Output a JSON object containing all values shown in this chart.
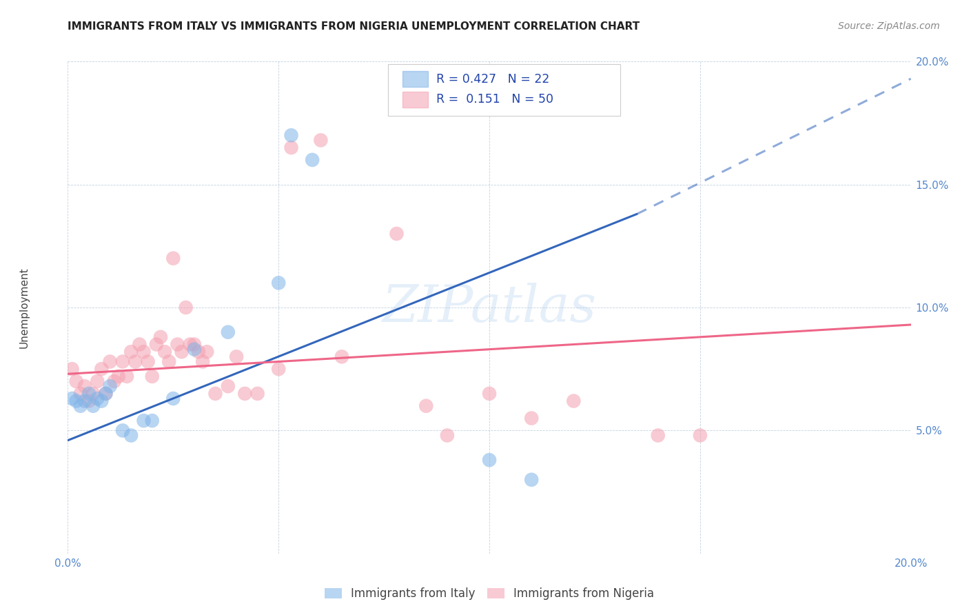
{
  "title": "IMMIGRANTS FROM ITALY VS IMMIGRANTS FROM NIGERIA UNEMPLOYMENT CORRELATION CHART",
  "source": "Source: ZipAtlas.com",
  "ylabel": "Unemployment",
  "xlim": [
    0.0,
    0.2
  ],
  "ylim": [
    0.0,
    0.2
  ],
  "x_ticks": [
    0.0,
    0.05,
    0.1,
    0.15,
    0.2
  ],
  "y_ticks": [
    0.05,
    0.1,
    0.15,
    0.2
  ],
  "watermark": "ZIPatlas",
  "legend_italy_R": "0.427",
  "legend_italy_N": "22",
  "legend_nigeria_R": "0.151",
  "legend_nigeria_N": "50",
  "italy_color": "#7FB3E8",
  "nigeria_color": "#F4A0B0",
  "italy_line_color": "#3366BB",
  "nigeria_line_color": "#EE6688",
  "italy_points": [
    [
      0.001,
      0.063
    ],
    [
      0.002,
      0.062
    ],
    [
      0.003,
      0.06
    ],
    [
      0.004,
      0.062
    ],
    [
      0.005,
      0.065
    ],
    [
      0.006,
      0.06
    ],
    [
      0.007,
      0.063
    ],
    [
      0.008,
      0.062
    ],
    [
      0.009,
      0.065
    ],
    [
      0.01,
      0.068
    ],
    [
      0.013,
      0.05
    ],
    [
      0.015,
      0.048
    ],
    [
      0.018,
      0.054
    ],
    [
      0.02,
      0.054
    ],
    [
      0.025,
      0.063
    ],
    [
      0.03,
      0.083
    ],
    [
      0.038,
      0.09
    ],
    [
      0.05,
      0.11
    ],
    [
      0.053,
      0.17
    ],
    [
      0.058,
      0.16
    ],
    [
      0.1,
      0.038
    ],
    [
      0.11,
      0.03
    ]
  ],
  "nigeria_points": [
    [
      0.001,
      0.075
    ],
    [
      0.002,
      0.07
    ],
    [
      0.003,
      0.065
    ],
    [
      0.004,
      0.068
    ],
    [
      0.005,
      0.062
    ],
    [
      0.006,
      0.065
    ],
    [
      0.007,
      0.07
    ],
    [
      0.008,
      0.075
    ],
    [
      0.009,
      0.065
    ],
    [
      0.01,
      0.078
    ],
    [
      0.011,
      0.07
    ],
    [
      0.012,
      0.072
    ],
    [
      0.013,
      0.078
    ],
    [
      0.014,
      0.072
    ],
    [
      0.015,
      0.082
    ],
    [
      0.016,
      0.078
    ],
    [
      0.017,
      0.085
    ],
    [
      0.018,
      0.082
    ],
    [
      0.019,
      0.078
    ],
    [
      0.02,
      0.072
    ],
    [
      0.021,
      0.085
    ],
    [
      0.022,
      0.088
    ],
    [
      0.023,
      0.082
    ],
    [
      0.024,
      0.078
    ],
    [
      0.025,
      0.12
    ],
    [
      0.026,
      0.085
    ],
    [
      0.027,
      0.082
    ],
    [
      0.028,
      0.1
    ],
    [
      0.029,
      0.085
    ],
    [
      0.03,
      0.085
    ],
    [
      0.031,
      0.082
    ],
    [
      0.032,
      0.078
    ],
    [
      0.033,
      0.082
    ],
    [
      0.035,
      0.065
    ],
    [
      0.038,
      0.068
    ],
    [
      0.04,
      0.08
    ],
    [
      0.042,
      0.065
    ],
    [
      0.045,
      0.065
    ],
    [
      0.05,
      0.075
    ],
    [
      0.053,
      0.165
    ],
    [
      0.06,
      0.168
    ],
    [
      0.065,
      0.08
    ],
    [
      0.078,
      0.13
    ],
    [
      0.085,
      0.06
    ],
    [
      0.09,
      0.048
    ],
    [
      0.1,
      0.065
    ],
    [
      0.11,
      0.055
    ],
    [
      0.12,
      0.062
    ],
    [
      0.14,
      0.048
    ],
    [
      0.15,
      0.048
    ]
  ],
  "italy_line_x0": 0.0,
  "italy_line_x1": 0.135,
  "italy_line_y0": 0.046,
  "italy_line_y1": 0.138,
  "italy_line_ext_x1": 0.2,
  "italy_line_ext_y1": 0.193,
  "nigeria_line_x0": 0.0,
  "nigeria_line_x1": 0.2,
  "nigeria_line_y0": 0.073,
  "nigeria_line_y1": 0.093,
  "title_fontsize": 11,
  "tick_fontsize": 11,
  "source_fontsize": 10,
  "ylabel_fontsize": 11
}
